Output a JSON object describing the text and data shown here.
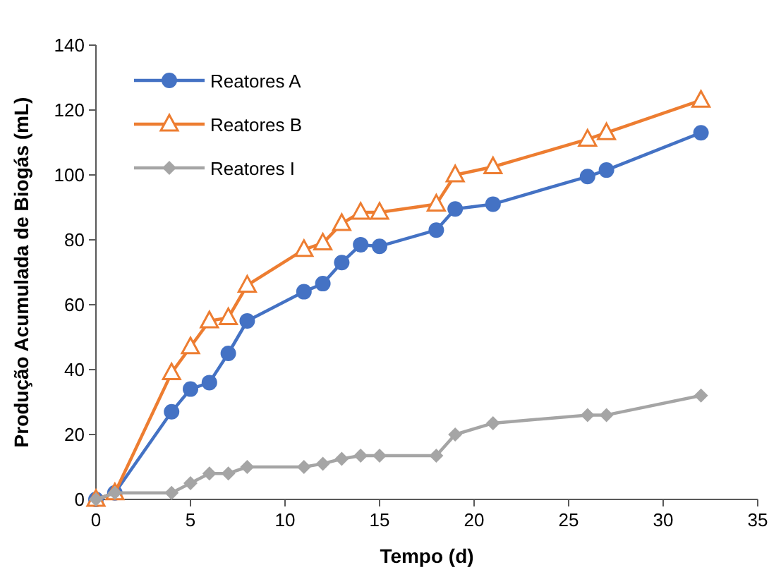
{
  "chart_data": {
    "type": "line",
    "xlabel": "Tempo (d)",
    "ylabel": "Produção Acumulada de Biogás (mL)",
    "x": [
      0,
      1,
      4,
      5,
      6,
      7,
      8,
      11,
      12,
      13,
      14,
      15,
      18,
      19,
      21,
      26,
      27,
      32
    ],
    "series": [
      {
        "name": "Reatores A",
        "color": "#4472c4",
        "marker": "circle",
        "values": [
          0,
          2,
          27,
          34,
          36,
          45,
          55,
          64,
          66.5,
          73,
          78.5,
          78,
          83,
          89.5,
          91,
          99.5,
          101.5,
          113
        ]
      },
      {
        "name": "Reatores B",
        "color": "#ed7d31",
        "marker": "triangle",
        "values": [
          0,
          2,
          39,
          47,
          55,
          56,
          66,
          77,
          79,
          85,
          88.5,
          88.5,
          91,
          100,
          102.5,
          111,
          113,
          123
        ]
      },
      {
        "name": "Reatores I",
        "color": "#a5a5a5",
        "marker": "diamond",
        "values": [
          0,
          2,
          2,
          5,
          8,
          8,
          10,
          10,
          11,
          12.5,
          13.5,
          13.5,
          13.5,
          20,
          23.5,
          26,
          26,
          32
        ]
      }
    ],
    "xlim": [
      0,
      35
    ],
    "xticks": [
      0,
      5,
      10,
      15,
      20,
      25,
      30,
      35
    ],
    "ylim": [
      0,
      140
    ],
    "yticks": [
      0,
      20,
      40,
      60,
      80,
      100,
      120,
      140
    ],
    "grid": false,
    "legend": "top left"
  }
}
